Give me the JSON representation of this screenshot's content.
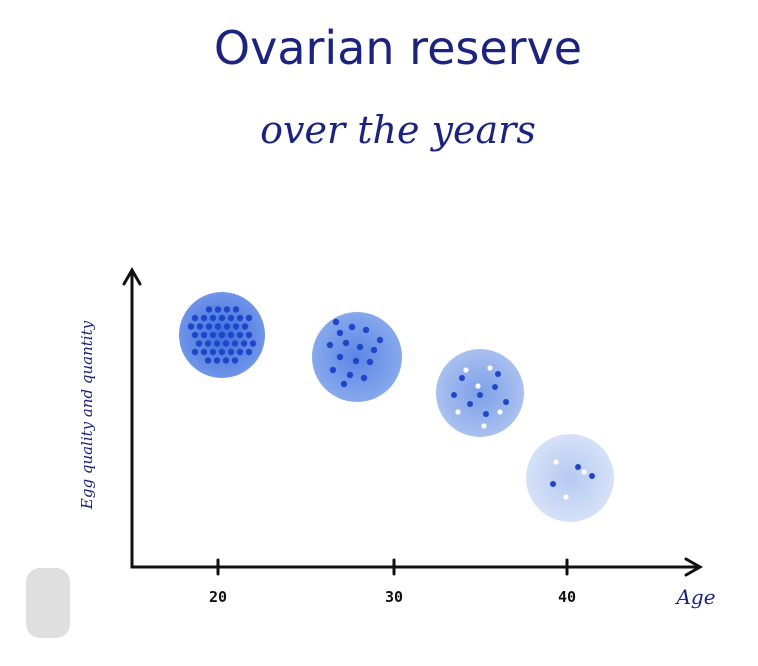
{
  "header": {
    "title": "Ovarian reserve",
    "subtitle": "over the years"
  },
  "axes": {
    "y_label": "Egg quality and quantity",
    "x_label": "Age",
    "x_ticks": [
      "20",
      "30",
      "40"
    ]
  }
}
